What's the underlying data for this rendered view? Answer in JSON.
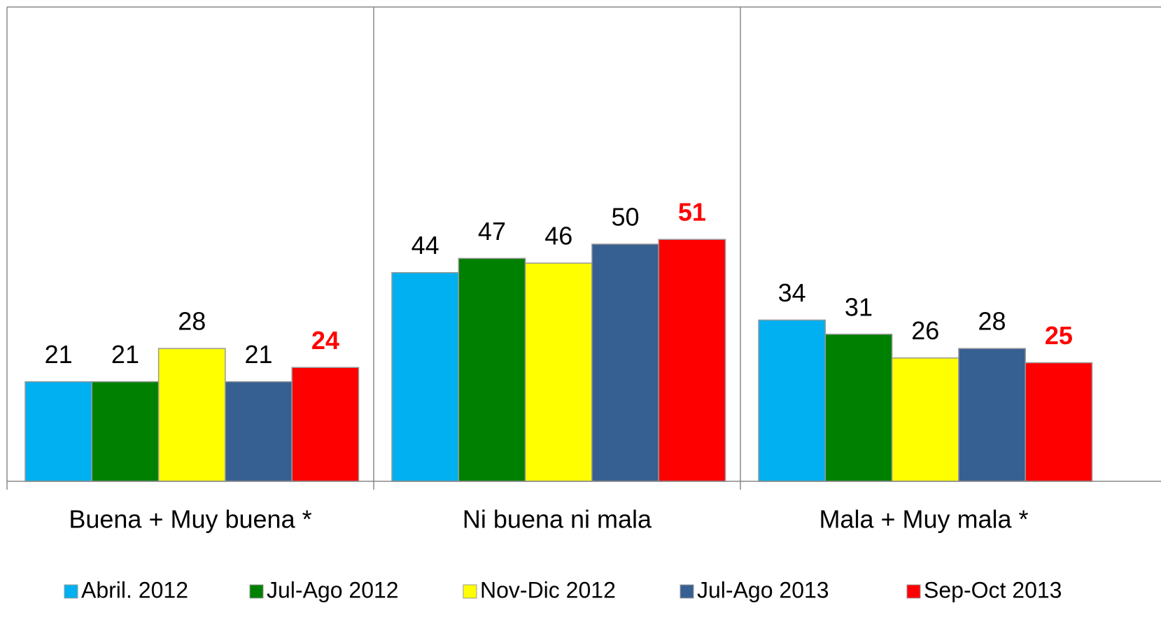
{
  "chart_data": {
    "type": "bar",
    "categories": [
      "Buena + Muy buena *",
      "Ni buena ni mala",
      "Mala + Muy mala *"
    ],
    "ylim": [
      0,
      100
    ],
    "series": [
      {
        "name": "Abril. 2012",
        "color": "#00b0f0",
        "values": [
          21,
          44,
          34
        ]
      },
      {
        "name": "Jul-Ago 2012",
        "color": "#008000",
        "values": [
          21,
          47,
          31
        ]
      },
      {
        "name": "Nov-Dic 2012",
        "color": "#ffff00",
        "values": [
          28,
          46,
          26
        ]
      },
      {
        "name": "Jul-Ago 2013",
        "color": "#376092",
        "values": [
          21,
          50,
          28
        ]
      },
      {
        "name": "Sep-Oct 2013",
        "color": "#ff0000",
        "values": [
          24,
          51,
          25
        ],
        "label_color": "#ff0000",
        "label_bold": true
      }
    ],
    "legend": "bottom"
  }
}
